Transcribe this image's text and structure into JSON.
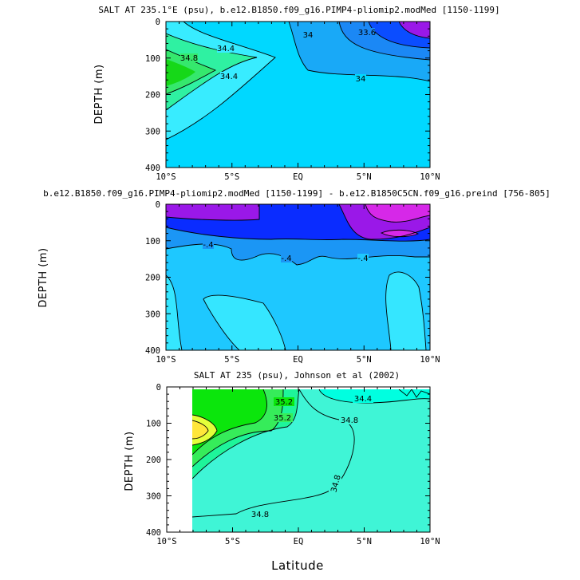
{
  "chart_data": [
    {
      "type": "contour",
      "title": "SALT AT 235.1°E (psu), b.e12.B1850.f09_g16.PIMP4-pliomip2.modMed [1150-1199]",
      "ylabel": "DEPTH (m)",
      "xlabel": "",
      "x_ticks": [
        "10°S",
        "5°S",
        "EQ",
        "5°N",
        "10°N"
      ],
      "y_ticks": [
        "0",
        "100",
        "200",
        "300",
        "400"
      ],
      "xlim": [
        -10,
        10
      ],
      "ylim": [
        400,
        0
      ],
      "contour_labels": [
        "34.8",
        "34.4",
        "34.4",
        "34",
        "34",
        "33.6"
      ],
      "colors": [
        "#00d8ff",
        "#38ecff",
        "#19a9f7",
        "#1b88f5",
        "#0b4dff",
        "#9a18e8",
        "#2ff1a2",
        "#35e86d",
        "#16d818"
      ]
    },
    {
      "type": "contour",
      "title": "b.e12.B1850.f09_g16.PIMP4-pliomip2.modMed [1150-1199] - b.e12.B1850C5CN.f09_g16.preind [756-805]",
      "ylabel": "DEPTH (m)",
      "xlabel": "",
      "x_ticks": [
        "10°S",
        "5°S",
        "EQ",
        "5°N",
        "10°N"
      ],
      "y_ticks": [
        "0",
        "100",
        "200",
        "300",
        "400"
      ],
      "xlim": [
        -10,
        10
      ],
      "ylim": [
        400,
        0
      ],
      "contour_labels": [
        "-.4",
        "-.4",
        "-.4"
      ],
      "colors": [
        "#1ec8ff",
        "#35e6ff",
        "#1b96f5",
        "#0a2cff",
        "#9a18e8",
        "#d628e8"
      ]
    },
    {
      "type": "contour",
      "title": "SALT AT 235 (psu), Johnson et al (2002)",
      "ylabel": "DEPTH (m)",
      "xlabel": "Latitude",
      "x_ticks": [
        "10°S",
        "5°S",
        "EQ",
        "5°N",
        "10°N"
      ],
      "y_ticks": [
        "0",
        "100",
        "200",
        "300",
        "400"
      ],
      "xlim": [
        -10,
        10
      ],
      "ylim": [
        400,
        0
      ],
      "data_start_lat": -8,
      "contour_labels": [
        "35.2",
        "35.2",
        "34.4",
        "34.8",
        "34.8",
        "34.8"
      ],
      "colors": [
        "#00ffe0",
        "#3ff5d6",
        "#1ef59a",
        "#36ec5a",
        "#0be60c",
        "#e4ff3a",
        "#ffe63a"
      ]
    }
  ]
}
